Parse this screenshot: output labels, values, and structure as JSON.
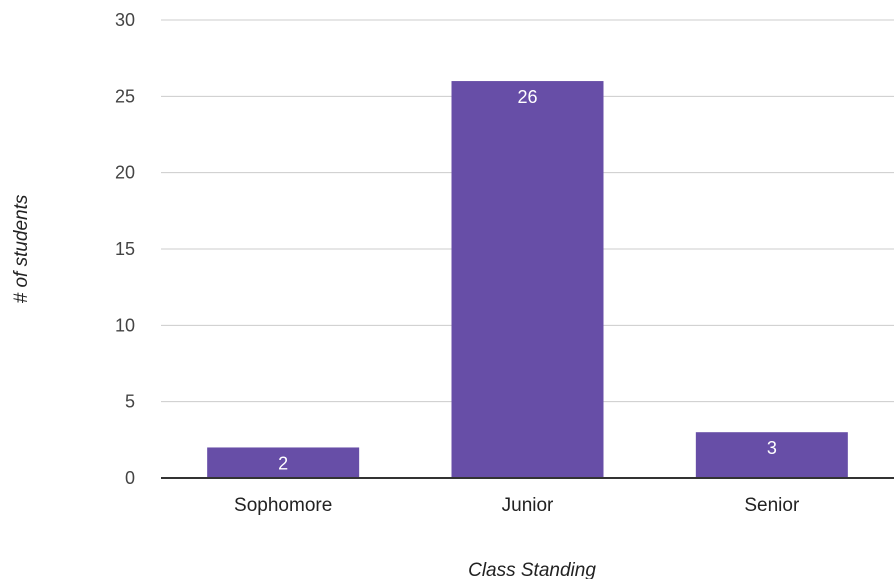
{
  "chart_data": {
    "type": "bar",
    "categories": [
      "Sophomore",
      "Junior",
      "Senior"
    ],
    "values": [
      2,
      26,
      3
    ],
    "data_labels": [
      "2",
      "26",
      "3"
    ],
    "xlabel": "Class Standing",
    "ylabel": "# of students",
    "ylim": [
      0,
      30
    ],
    "yticks": [
      "0",
      "5",
      "10",
      "15",
      "20",
      "25",
      "30"
    ],
    "ytick_values": [
      0,
      5,
      10,
      15,
      20,
      25,
      30
    ],
    "grid": true,
    "legend": "none",
    "bar_color": "#674ea7",
    "gridline_color": "#cccccc",
    "baseline_color": "#333333",
    "label_inside_color": "#ffffff",
    "label_outside_color": "#674ea7"
  }
}
